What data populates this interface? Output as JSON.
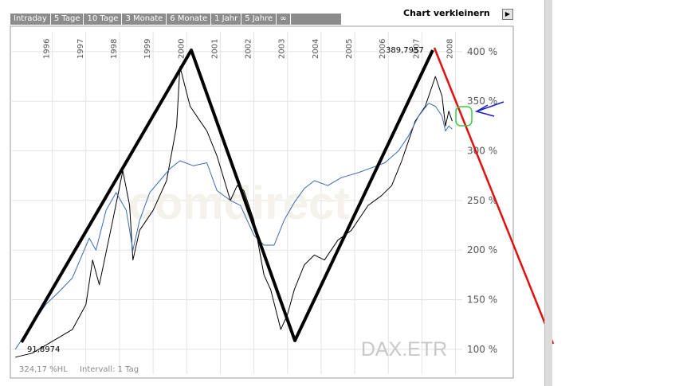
{
  "toolbar": {
    "tabs": [
      "Intraday",
      "5 Tage",
      "10 Tage",
      "3 Monate",
      "6 Monate",
      "1 Jahr",
      "5 Jahre",
      "∞"
    ],
    "shrink_label": "Chart verkleinern"
  },
  "chart_data": {
    "type": "line",
    "years": [
      "1996",
      "1997",
      "1998",
      "1999",
      "2000",
      "2001",
      "2002",
      "2003",
      "2004",
      "2005",
      "2006",
      "2007",
      "2008"
    ],
    "y_ticks": [
      "400 %",
      "350 %",
      "300 %",
      "250 %",
      "200 %",
      "150 %",
      "100 %"
    ],
    "ylim": [
      75,
      420
    ],
    "xlim": [
      1995.2,
      2008.6
    ],
    "watermark": "DAX.ETR",
    "faint_watermark": "comdirect",
    "footer_left": "324,17 %HL",
    "footer_mid": "Intervall: 1 Tag",
    "labels": {
      "max": "389,7957",
      "min": "91,8974"
    },
    "series": [
      {
        "color": "#000000",
        "points": [
          [
            1995.3,
            92
          ],
          [
            1995.8,
            96
          ],
          [
            1996.5,
            110
          ],
          [
            1997.0,
            120
          ],
          [
            1997.4,
            145
          ],
          [
            1997.6,
            190
          ],
          [
            1997.8,
            165
          ],
          [
            1998.2,
            230
          ],
          [
            1998.5,
            280
          ],
          [
            1998.7,
            245
          ],
          [
            1998.8,
            190
          ],
          [
            1999.0,
            220
          ],
          [
            1999.4,
            240
          ],
          [
            1999.8,
            270
          ],
          [
            2000.1,
            325
          ],
          [
            2000.2,
            385
          ],
          [
            2000.5,
            345
          ],
          [
            2000.8,
            330
          ],
          [
            2001.0,
            320
          ],
          [
            2001.3,
            295
          ],
          [
            2001.7,
            250
          ],
          [
            2001.9,
            265
          ],
          [
            2002.1,
            260
          ],
          [
            2002.4,
            230
          ],
          [
            2002.7,
            175
          ],
          [
            2002.9,
            160
          ],
          [
            2003.2,
            120
          ],
          [
            2003.4,
            135
          ],
          [
            2003.6,
            160
          ],
          [
            2003.9,
            185
          ],
          [
            2004.2,
            195
          ],
          [
            2004.5,
            190
          ],
          [
            2004.9,
            210
          ],
          [
            2005.3,
            220
          ],
          [
            2005.8,
            245
          ],
          [
            2006.2,
            255
          ],
          [
            2006.5,
            265
          ],
          [
            2006.8,
            290
          ],
          [
            2007.2,
            330
          ],
          [
            2007.5,
            345
          ],
          [
            2007.8,
            375
          ],
          [
            2008.0,
            355
          ],
          [
            2008.1,
            325
          ],
          [
            2008.2,
            340
          ],
          [
            2008.3,
            330
          ]
        ]
      },
      {
        "color": "#3a6bb0",
        "points": [
          [
            1995.3,
            100
          ],
          [
            1995.8,
            125
          ],
          [
            1996.2,
            145
          ],
          [
            1996.6,
            158
          ],
          [
            1997.0,
            172
          ],
          [
            1997.5,
            212
          ],
          [
            1997.7,
            200
          ],
          [
            1998.0,
            240
          ],
          [
            1998.3,
            258
          ],
          [
            1998.6,
            240
          ],
          [
            1998.8,
            200
          ],
          [
            1999.0,
            230
          ],
          [
            1999.3,
            258
          ],
          [
            1999.6,
            270
          ],
          [
            1999.9,
            282
          ],
          [
            2000.2,
            290
          ],
          [
            2000.6,
            285
          ],
          [
            2001.0,
            288
          ],
          [
            2001.3,
            260
          ],
          [
            2001.7,
            250
          ],
          [
            2002.0,
            245
          ],
          [
            2002.4,
            215
          ],
          [
            2002.7,
            205
          ],
          [
            2003.0,
            205
          ],
          [
            2003.3,
            230
          ],
          [
            2003.6,
            248
          ],
          [
            2003.9,
            262
          ],
          [
            2004.2,
            270
          ],
          [
            2004.6,
            265
          ],
          [
            2005.0,
            273
          ],
          [
            2005.5,
            278
          ],
          [
            2005.9,
            283
          ],
          [
            2006.3,
            288
          ],
          [
            2006.7,
            300
          ],
          [
            2007.0,
            315
          ],
          [
            2007.3,
            335
          ],
          [
            2007.6,
            348
          ],
          [
            2007.8,
            345
          ],
          [
            2008.0,
            335
          ],
          [
            2008.1,
            320
          ],
          [
            2008.2,
            325
          ],
          [
            2008.3,
            322
          ]
        ]
      }
    ]
  }
}
